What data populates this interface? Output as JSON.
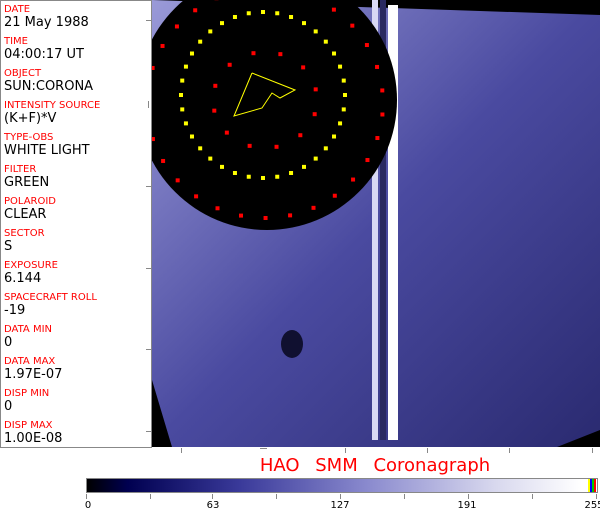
{
  "header_fields": [
    {
      "label": "DATE",
      "value": "21 May 1988"
    },
    {
      "label": "TIME",
      "value": "04:00:17 UT"
    },
    {
      "label": "OBJECT",
      "value": "SUN:CORONA"
    },
    {
      "label": "INTENSITY SOURCE",
      "value": "(K+F)*V"
    },
    {
      "label": "TYPE-OBS",
      "value": "WHITE LIGHT"
    },
    {
      "label": "FILTER",
      "value": "GREEN"
    },
    {
      "label": "POLAROID",
      "value": "CLEAR"
    },
    {
      "label": "SECTOR",
      "value": "S"
    },
    {
      "label": "EXPOSURE",
      "value": "6.144"
    },
    {
      "label": "SPACECRAFT ROLL",
      "value": "-19"
    },
    {
      "label": "DATA MIN",
      "value": "0"
    },
    {
      "label": "DATA MAX",
      "value": "1.97E-07"
    },
    {
      "label": "DISP MIN",
      "value": "0"
    },
    {
      "label": "DISP MAX",
      "value": "1.00E-08"
    }
  ],
  "title": "HAO   SMM   Coronagraph",
  "colorbar": {
    "tick_labels": [
      "0",
      "63",
      "127",
      "191",
      "255"
    ],
    "colors": {
      "low": "#000000",
      "mid": "#8a8ace",
      "high": "#ffffff",
      "marker_yellow": "#ffff00",
      "marker_blue": "#0000ff",
      "marker_green": "#00c000",
      "marker_red": "#ff0000"
    }
  },
  "colors": {
    "label": "#ff0000",
    "overlay_yellow": "#ffff00",
    "overlay_red": "#ff0000",
    "corona": "#5a5aa8"
  }
}
